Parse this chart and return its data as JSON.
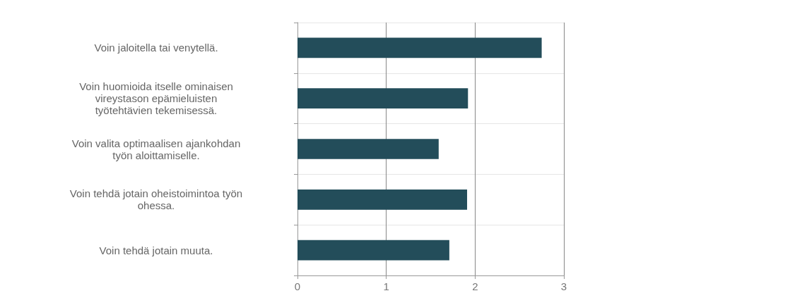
{
  "chart_data": {
    "type": "bar",
    "orientation": "horizontal",
    "categories": [
      "Voin jaloitella tai venytellä.",
      "Voin huomioida itselle ominaisen\nvireystason epämieluisten\ntyötehtävien tekemisessä.",
      "Voin valita optimaalisen ajankohdan\ntyön aloittamiselle.",
      "Voin tehdä jotain oheistoimintoa työn\nohessa.",
      "Voin tehdä jotain muuta."
    ],
    "values": [
      2.75,
      1.92,
      1.59,
      1.91,
      1.71
    ],
    "color": "#234d5a",
    "xlim": [
      0,
      3
    ],
    "xticks": [
      0,
      1,
      2,
      3
    ],
    "grid": true
  }
}
